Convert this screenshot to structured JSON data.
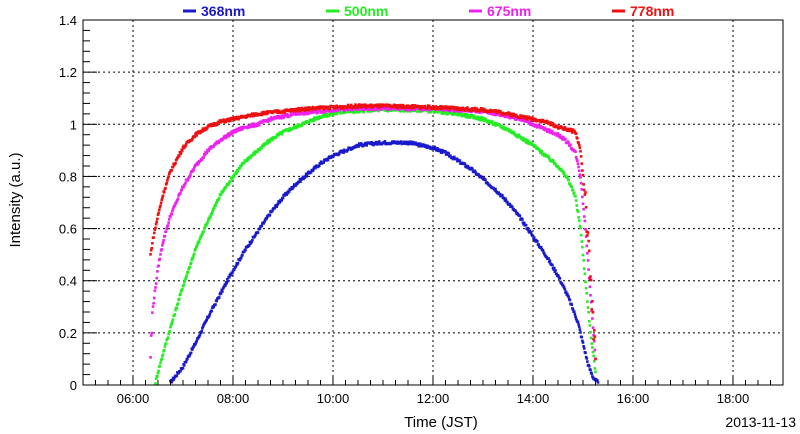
{
  "chart_data": {
    "type": "scatter",
    "title": "",
    "xlabel": "Time (JST)",
    "ylabel": "Intensity (a.u.)",
    "date_label": "2013-11-13",
    "x_unit": "hours (JST)",
    "xlim": [
      5.0,
      19.0
    ],
    "ylim": [
      0,
      1.4
    ],
    "x_ticks": [
      6,
      8,
      10,
      12,
      14,
      16,
      18
    ],
    "x_tick_labels": [
      "06:00",
      "08:00",
      "10:00",
      "12:00",
      "14:00",
      "16:00",
      "18:00"
    ],
    "y_ticks": [
      0,
      0.2,
      0.4,
      0.6,
      0.8,
      1,
      1.2,
      1.4
    ],
    "y_tick_labels": [
      "0",
      "0.2",
      "0.4",
      "0.6",
      "0.8",
      "1",
      "1.2",
      "1.4"
    ],
    "grid": true,
    "legend_position": "top",
    "series": [
      {
        "name": "368nm",
        "color": "#1a1acc",
        "points": [
          [
            6.75,
            0.01
          ],
          [
            7.0,
            0.07
          ],
          [
            7.25,
            0.16
          ],
          [
            7.5,
            0.26
          ],
          [
            7.75,
            0.35
          ],
          [
            8.0,
            0.44
          ],
          [
            8.25,
            0.52
          ],
          [
            8.5,
            0.59
          ],
          [
            8.75,
            0.66
          ],
          [
            9.0,
            0.72
          ],
          [
            9.25,
            0.77
          ],
          [
            9.5,
            0.81
          ],
          [
            9.75,
            0.85
          ],
          [
            10.0,
            0.88
          ],
          [
            10.25,
            0.9
          ],
          [
            10.5,
            0.92
          ],
          [
            10.75,
            0.925
          ],
          [
            11.0,
            0.93
          ],
          [
            11.25,
            0.93
          ],
          [
            11.5,
            0.93
          ],
          [
            11.75,
            0.92
          ],
          [
            12.0,
            0.91
          ],
          [
            12.25,
            0.89
          ],
          [
            12.5,
            0.86
          ],
          [
            12.75,
            0.83
          ],
          [
            13.0,
            0.79
          ],
          [
            13.25,
            0.75
          ],
          [
            13.5,
            0.7
          ],
          [
            13.75,
            0.64
          ],
          [
            14.0,
            0.57
          ],
          [
            14.25,
            0.5
          ],
          [
            14.5,
            0.42
          ],
          [
            14.7,
            0.34
          ],
          [
            14.9,
            0.24
          ],
          [
            15.0,
            0.16
          ],
          [
            15.1,
            0.08
          ],
          [
            15.2,
            0.03
          ],
          [
            15.3,
            0.01
          ]
        ]
      },
      {
        "name": "500nm",
        "color": "#22ee22",
        "points": [
          [
            6.45,
            0.01
          ],
          [
            6.5,
            0.05
          ],
          [
            6.6,
            0.12
          ],
          [
            6.75,
            0.22
          ],
          [
            7.0,
            0.38
          ],
          [
            7.25,
            0.52
          ],
          [
            7.5,
            0.63
          ],
          [
            7.75,
            0.73
          ],
          [
            8.0,
            0.8
          ],
          [
            8.25,
            0.86
          ],
          [
            8.5,
            0.9
          ],
          [
            8.75,
            0.94
          ],
          [
            9.0,
            0.97
          ],
          [
            9.25,
            0.99
          ],
          [
            9.5,
            1.01
          ],
          [
            9.75,
            1.03
          ],
          [
            10.0,
            1.04
          ],
          [
            10.25,
            1.05
          ],
          [
            10.5,
            1.05
          ],
          [
            10.75,
            1.055
          ],
          [
            11.0,
            1.055
          ],
          [
            11.25,
            1.055
          ],
          [
            11.5,
            1.055
          ],
          [
            11.75,
            1.055
          ],
          [
            12.0,
            1.05
          ],
          [
            12.25,
            1.045
          ],
          [
            12.5,
            1.04
          ],
          [
            12.75,
            1.03
          ],
          [
            13.0,
            1.02
          ],
          [
            13.25,
            1.0
          ],
          [
            13.5,
            0.98
          ],
          [
            13.75,
            0.95
          ],
          [
            14.0,
            0.92
          ],
          [
            14.25,
            0.88
          ],
          [
            14.5,
            0.84
          ],
          [
            14.7,
            0.79
          ],
          [
            14.85,
            0.72
          ],
          [
            14.95,
            0.6
          ],
          [
            15.05,
            0.4
          ],
          [
            15.15,
            0.2
          ],
          [
            15.25,
            0.05
          ]
        ]
      },
      {
        "name": "675nm",
        "color": "#ee22ee",
        "points": [
          [
            6.35,
            0.12
          ],
          [
            6.4,
            0.3
          ],
          [
            6.5,
            0.45
          ],
          [
            6.6,
            0.55
          ],
          [
            6.75,
            0.65
          ],
          [
            7.0,
            0.76
          ],
          [
            7.25,
            0.84
          ],
          [
            7.5,
            0.9
          ],
          [
            7.75,
            0.94
          ],
          [
            8.0,
            0.97
          ],
          [
            8.25,
            0.99
          ],
          [
            8.5,
            1.0
          ],
          [
            8.75,
            1.02
          ],
          [
            9.0,
            1.03
          ],
          [
            9.25,
            1.04
          ],
          [
            9.5,
            1.045
          ],
          [
            9.75,
            1.05
          ],
          [
            10.0,
            1.055
          ],
          [
            10.5,
            1.06
          ],
          [
            11.0,
            1.06
          ],
          [
            11.5,
            1.06
          ],
          [
            12.0,
            1.06
          ],
          [
            12.5,
            1.055
          ],
          [
            13.0,
            1.05
          ],
          [
            13.25,
            1.04
          ],
          [
            13.5,
            1.03
          ],
          [
            13.75,
            1.02
          ],
          [
            14.0,
            1.0
          ],
          [
            14.25,
            0.98
          ],
          [
            14.5,
            0.96
          ],
          [
            14.7,
            0.93
          ],
          [
            14.85,
            0.89
          ],
          [
            14.95,
            0.8
          ],
          [
            15.05,
            0.6
          ],
          [
            15.15,
            0.35
          ],
          [
            15.25,
            0.1
          ]
        ]
      },
      {
        "name": "778nm",
        "color": "#ee1111",
        "points": [
          [
            6.35,
            0.5
          ],
          [
            6.4,
            0.56
          ],
          [
            6.5,
            0.65
          ],
          [
            6.6,
            0.73
          ],
          [
            6.75,
            0.82
          ],
          [
            7.0,
            0.91
          ],
          [
            7.25,
            0.96
          ],
          [
            7.5,
            0.99
          ],
          [
            7.75,
            1.01
          ],
          [
            8.0,
            1.02
          ],
          [
            8.25,
            1.03
          ],
          [
            8.5,
            1.04
          ],
          [
            8.75,
            1.045
          ],
          [
            9.0,
            1.05
          ],
          [
            9.25,
            1.055
          ],
          [
            9.5,
            1.06
          ],
          [
            10.0,
            1.065
          ],
          [
            10.5,
            1.07
          ],
          [
            11.0,
            1.07
          ],
          [
            11.5,
            1.068
          ],
          [
            12.0,
            1.065
          ],
          [
            12.5,
            1.06
          ],
          [
            13.0,
            1.055
          ],
          [
            13.25,
            1.05
          ],
          [
            13.5,
            1.04
          ],
          [
            13.75,
            1.03
          ],
          [
            14.0,
            1.02
          ],
          [
            14.25,
            1.01
          ],
          [
            14.5,
            0.99
          ],
          [
            14.7,
            0.98
          ],
          [
            14.85,
            0.97
          ],
          [
            14.95,
            0.9
          ],
          [
            15.05,
            0.7
          ],
          [
            15.15,
            0.4
          ],
          [
            15.25,
            0.1
          ]
        ]
      }
    ]
  }
}
